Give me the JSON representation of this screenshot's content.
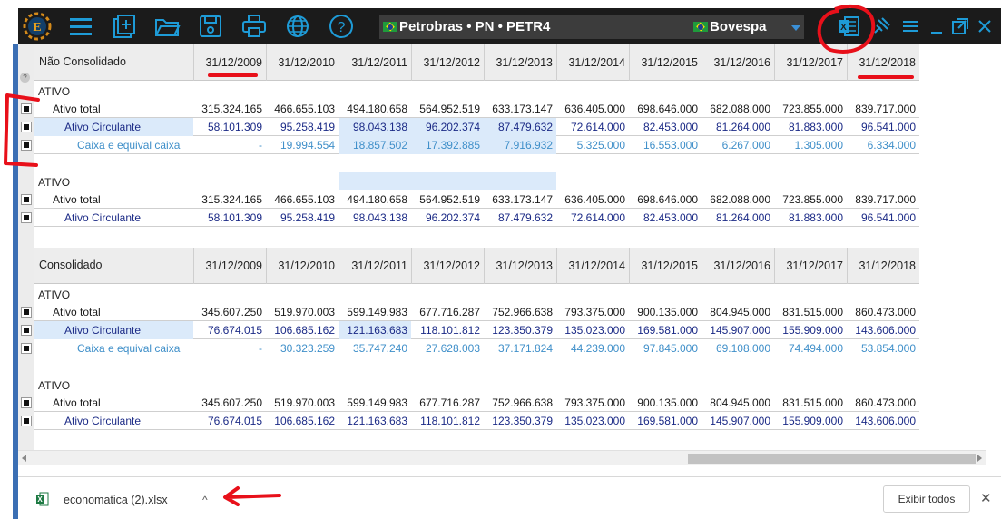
{
  "toolbar": {
    "ticker_company": "Petrobras • PN • PETR4",
    "ticker_exchange": "Bovespa"
  },
  "colors": {
    "toolbar_bg": "#1b1b1b",
    "accent": "#1e9bd7",
    "annotation": "#e8101a",
    "highlight": "#dbeafa"
  },
  "grid": {
    "dates": [
      "31/12/2009",
      "31/12/2010",
      "31/12/2011",
      "31/12/2012",
      "31/12/2013",
      "31/12/2014",
      "31/12/2015",
      "31/12/2016",
      "31/12/2017",
      "31/12/2018"
    ],
    "help_mark": "?",
    "nc_title": "Não Consolidado",
    "c_title": "Consolidado",
    "section_label": "ATIVO",
    "nc1": [
      {
        "label": "Ativo total",
        "values": [
          "315.324.165",
          "466.655.103",
          "494.180.658",
          "564.952.519",
          "633.173.147",
          "636.405.000",
          "698.646.000",
          "682.088.000",
          "723.855.000",
          "839.717.000"
        ]
      },
      {
        "label": "Ativo Circulante",
        "values": [
          "58.101.309",
          "95.258.419",
          "98.043.138",
          "96.202.374",
          "87.479.632",
          "72.614.000",
          "82.453.000",
          "81.264.000",
          "81.883.000",
          "96.541.000"
        ]
      },
      {
        "label": "Caixa e equival caixa",
        "values": [
          "-",
          "19.994.554",
          "18.857.502",
          "17.392.885",
          "7.916.932",
          "5.325.000",
          "16.553.000",
          "6.267.000",
          "1.305.000",
          "6.334.000"
        ]
      }
    ],
    "nc2": [
      {
        "label": "Ativo total",
        "values": [
          "315.324.165",
          "466.655.103",
          "494.180.658",
          "564.952.519",
          "633.173.147",
          "636.405.000",
          "698.646.000",
          "682.088.000",
          "723.855.000",
          "839.717.000"
        ]
      },
      {
        "label": "Ativo Circulante",
        "values": [
          "58.101.309",
          "95.258.419",
          "98.043.138",
          "96.202.374",
          "87.479.632",
          "72.614.000",
          "82.453.000",
          "81.264.000",
          "81.883.000",
          "96.541.000"
        ]
      }
    ],
    "c1": [
      {
        "label": "Ativo total",
        "values": [
          "345.607.250",
          "519.970.003",
          "599.149.983",
          "677.716.287",
          "752.966.638",
          "793.375.000",
          "900.135.000",
          "804.945.000",
          "831.515.000",
          "860.473.000"
        ]
      },
      {
        "label": "Ativo Circulante",
        "values": [
          "76.674.015",
          "106.685.162",
          "121.163.683",
          "118.101.812",
          "123.350.379",
          "135.023.000",
          "169.581.000",
          "145.907.000",
          "155.909.000",
          "143.606.000"
        ]
      },
      {
        "label": "Caixa e equival caixa",
        "values": [
          "-",
          "30.323.259",
          "35.747.240",
          "27.628.003",
          "37.171.824",
          "44.239.000",
          "97.845.000",
          "69.108.000",
          "74.494.000",
          "53.854.000"
        ]
      }
    ],
    "c2": [
      {
        "label": "Ativo total",
        "values": [
          "345.607.250",
          "519.970.003",
          "599.149.983",
          "677.716.287",
          "752.966.638",
          "793.375.000",
          "900.135.000",
          "804.945.000",
          "831.515.000",
          "860.473.000"
        ]
      },
      {
        "label": "Ativo Circulante",
        "values": [
          "76.674.015",
          "106.685.162",
          "121.163.683",
          "118.101.812",
          "123.350.379",
          "135.023.000",
          "169.581.000",
          "145.907.000",
          "155.909.000",
          "143.606.000"
        ]
      }
    ]
  },
  "download_bar": {
    "filename": "economatica (2).xlsx",
    "show_all": "Exibir todos",
    "close": "✕",
    "chevron": "^"
  }
}
